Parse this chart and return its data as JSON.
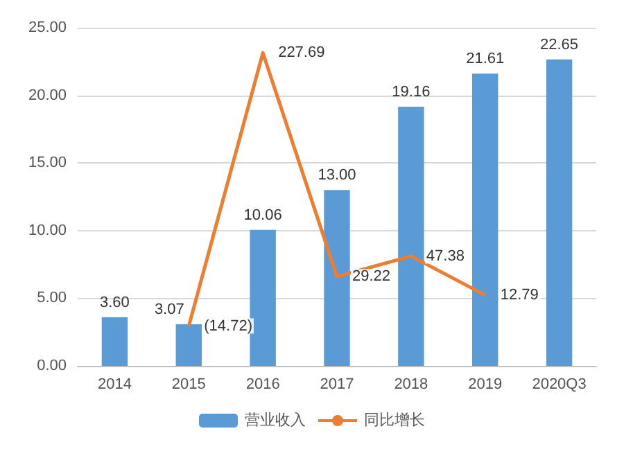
{
  "chart_data": {
    "type": "bar",
    "categories": [
      "2014",
      "2015",
      "2016",
      "2017",
      "2018",
      "2019",
      "2020Q3"
    ],
    "series": [
      {
        "name": "营业收入",
        "color": "#5b9bd5",
        "values": [
          3.6,
          3.07,
          10.06,
          13.0,
          19.16,
          21.61,
          22.65
        ],
        "value_labels": [
          "3.60",
          "3.07",
          "10.06",
          "13.00",
          "19.16",
          "21.61",
          "22.65"
        ]
      },
      {
        "name": "同比增长",
        "type": "line",
        "axis": "y2",
        "color": "#ed7d31",
        "values": [
          null,
          -14.72,
          227.69,
          29.22,
          47.38,
          12.79,
          null
        ],
        "value_labels": [
          null,
          "(14.72)",
          "227.69",
          "29.22",
          "47.38",
          "12.79",
          null
        ]
      }
    ],
    "ylim": [
      0,
      25
    ],
    "yticks": [
      {
        "value": 0,
        "label": "0.00"
      },
      {
        "value": 5,
        "label": "5.00"
      },
      {
        "value": 10,
        "label": "10.00"
      },
      {
        "value": 15,
        "label": "15.00"
      },
      {
        "value": 20,
        "label": "20.00"
      },
      {
        "value": 25,
        "label": "25.00"
      }
    ],
    "y2lim": [
      -50,
      250
    ],
    "grid": "y",
    "legend": "bottom",
    "marker": "none",
    "line_style": "solid"
  }
}
